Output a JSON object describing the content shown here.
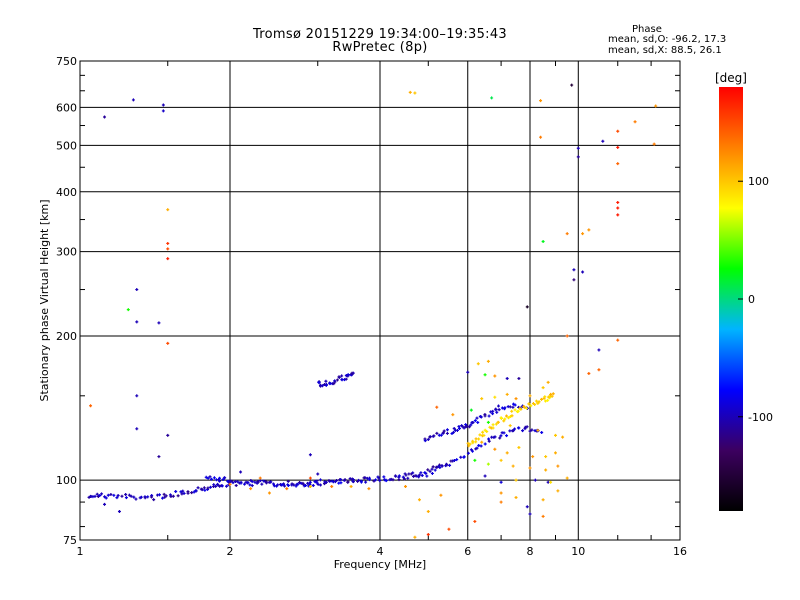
{
  "header": {
    "title_line1": "Tromsø 20151229 19:34:00–19:35:43",
    "title_line2": "RwPretec (8p)",
    "phase_heading": "Phase",
    "phase_o": "mean, sd,O: -96.2, 17.3",
    "phase_x": "mean, sd,X: 88.5, 26.1"
  },
  "chart_data": {
    "type": "scatter",
    "xlabel": "Frequency [MHz]",
    "ylabel": "Stationary phase Virtual Height [km]",
    "x_scale": "log2",
    "y_scale": "log",
    "xlim": [
      1,
      16
    ],
    "ylim": [
      75,
      750
    ],
    "x_ticks": [
      1,
      2,
      4,
      6,
      8,
      10,
      16
    ],
    "y_ticks": [
      75,
      100,
      200,
      300,
      400,
      500,
      600,
      750
    ],
    "grid": true,
    "colorbar": {
      "label": "[deg]",
      "range": [
        -180,
        180
      ],
      "ticks": [
        100,
        0,
        -100
      ],
      "colors": [
        "#000000",
        "#3c0060",
        "#0000ff",
        "#00b4ff",
        "#00ff00",
        "#ffff00",
        "#ff8000",
        "#ff0000"
      ]
    },
    "traces": [
      {
        "name": "",
        "note": "low-band O trace",
        "points": [
          [
            1.05,
            93
          ],
          [
            1.1,
            92.8
          ],
          [
            1.2,
            92.4
          ],
          [
            1.3,
            92.2
          ],
          [
            1.4,
            92
          ],
          [
            1.5,
            93
          ],
          [
            1.6,
            94
          ],
          [
            1.7,
            95.5
          ],
          [
            1.8,
            96.5
          ],
          [
            1.9,
            97.5
          ],
          [
            2.0,
            98.5
          ],
          [
            2.2,
            98.5
          ],
          [
            2.4,
            98
          ],
          [
            2.7,
            98
          ],
          [
            3.0,
            98.5
          ],
          [
            3.3,
            99
          ],
          [
            3.6,
            100
          ],
          [
            4.0,
            100.5
          ],
          [
            4.4,
            101.5
          ],
          [
            4.8,
            103
          ],
          [
            5.2,
            106
          ],
          [
            5.6,
            110
          ]
        ],
        "phase": -100
      },
      {
        "name": "",
        "note": "E-region band",
        "points": [
          [
            1.8,
            102
          ],
          [
            1.9,
            100.5
          ],
          [
            2.0,
            99.5
          ],
          [
            2.2,
            99
          ],
          [
            2.4,
            98.5
          ],
          [
            2.6,
            98.3
          ],
          [
            2.8,
            98.5
          ],
          [
            3.0,
            99
          ],
          [
            3.3,
            99.5
          ],
          [
            3.6,
            100
          ],
          [
            4.0,
            100.5
          ],
          [
            4.5,
            101.5
          ],
          [
            5.0,
            103
          ],
          [
            5.5,
            108
          ],
          [
            6.0,
            114
          ],
          [
            6.5,
            120
          ],
          [
            7.0,
            124
          ],
          [
            7.5,
            127
          ],
          [
            8.0,
            128
          ],
          [
            8.5,
            126
          ]
        ],
        "phase": -95
      },
      {
        "name": "",
        "note": "upper trace",
        "points": [
          [
            4.9,
            122
          ],
          [
            5.2,
            124
          ],
          [
            5.5,
            126
          ],
          [
            5.8,
            128
          ],
          [
            6.0,
            130
          ],
          [
            6.3,
            134
          ],
          [
            6.7,
            138
          ],
          [
            7.0,
            142
          ],
          [
            7.5,
            143
          ],
          [
            8.0,
            141
          ]
        ],
        "phase": -95
      },
      {
        "name": "",
        "note": "cusp segment",
        "points": [
          [
            3.0,
            159
          ],
          [
            3.1,
            159
          ],
          [
            3.2,
            160
          ],
          [
            3.35,
            163
          ],
          [
            3.45,
            165
          ],
          [
            3.55,
            167
          ]
        ],
        "phase": -100
      },
      {
        "name": "",
        "note": "X-mode trace",
        "points": [
          [
            6.0,
            118
          ],
          [
            6.3,
            122
          ],
          [
            6.6,
            128
          ],
          [
            7.0,
            134
          ],
          [
            7.4,
            138
          ],
          [
            7.8,
            142
          ],
          [
            8.2,
            145
          ],
          [
            8.6,
            148
          ],
          [
            9.0,
            150
          ]
        ],
        "phase": 95
      }
    ],
    "scatter": [
      [
        1.05,
        143,
        140
      ],
      [
        1.12,
        573,
        -110
      ],
      [
        1.28,
        622,
        -100
      ],
      [
        1.47,
        607,
        -100
      ],
      [
        1.47,
        590,
        -95
      ],
      [
        1.5,
        367,
        110
      ],
      [
        1.5,
        312,
        160
      ],
      [
        1.5,
        304,
        150
      ],
      [
        1.5,
        290,
        170
      ],
      [
        1.5,
        193,
        150
      ],
      [
        1.3,
        250,
        -100
      ],
      [
        1.3,
        214,
        -100
      ],
      [
        1.44,
        213,
        -100
      ],
      [
        1.3,
        150,
        -100
      ],
      [
        1.3,
        128,
        -100
      ],
      [
        1.44,
        112,
        -110
      ],
      [
        1.5,
        124,
        -110
      ],
      [
        1.25,
        227,
        30
      ],
      [
        1.05,
        92.5,
        -100
      ],
      [
        1.12,
        89,
        -100
      ],
      [
        1.2,
        86,
        -100
      ],
      [
        4.6,
        645,
        110
      ],
      [
        4.7,
        643,
        100
      ],
      [
        6.7,
        628,
        10
      ],
      [
        8.4,
        620,
        120
      ],
      [
        9.7,
        668,
        -150
      ],
      [
        8.4,
        520,
        130
      ],
      [
        10.0,
        493,
        -100
      ],
      [
        10.0,
        473,
        -110
      ],
      [
        11.2,
        510,
        -100
      ],
      [
        12.0,
        535,
        150
      ],
      [
        12.0,
        495,
        170
      ],
      [
        12.0,
        458,
        140
      ],
      [
        13.0,
        560,
        130
      ],
      [
        14.3,
        604,
        120
      ],
      [
        14.2,
        503,
        130
      ],
      [
        12.0,
        380,
        170
      ],
      [
        12.0,
        370,
        170
      ],
      [
        12.0,
        358,
        170
      ],
      [
        9.5,
        327,
        130
      ],
      [
        10.2,
        327,
        120
      ],
      [
        10.5,
        333,
        120
      ],
      [
        8.5,
        315,
        20
      ],
      [
        9.8,
        275,
        -100
      ],
      [
        10.2,
        272,
        -100
      ],
      [
        9.8,
        262,
        -120
      ],
      [
        7.9,
        230,
        -160
      ],
      [
        9.5,
        200,
        140
      ],
      [
        12.0,
        196,
        140
      ],
      [
        11.0,
        187,
        -100
      ],
      [
        10.5,
        167,
        140
      ],
      [
        11.0,
        170,
        140
      ],
      [
        6.3,
        175,
        100
      ],
      [
        6.6,
        177,
        110
      ],
      [
        6.8,
        165,
        120
      ],
      [
        6.5,
        166,
        30
      ],
      [
        7.2,
        163,
        -100
      ],
      [
        7.6,
        163,
        -110
      ],
      [
        8.5,
        156,
        100
      ],
      [
        8.7,
        160,
        110
      ],
      [
        6.0,
        168,
        -100
      ],
      [
        5.2,
        142,
        140
      ],
      [
        5.6,
        137,
        120
      ],
      [
        6.4,
        148,
        100
      ],
      [
        6.8,
        149,
        90
      ],
      [
        7.2,
        151,
        110
      ],
      [
        7.5,
        148,
        120
      ],
      [
        8.0,
        150,
        110
      ],
      [
        8.8,
        151,
        110
      ],
      [
        6.1,
        140,
        20
      ],
      [
        6.6,
        132,
        30
      ],
      [
        7.0,
        135,
        80
      ],
      [
        7.3,
        130,
        100
      ],
      [
        8.3,
        127,
        110
      ],
      [
        9.0,
        124,
        100
      ],
      [
        9.3,
        123,
        110
      ],
      [
        6.4,
        120,
        110
      ],
      [
        6.8,
        116,
        120
      ],
      [
        7.2,
        114,
        110
      ],
      [
        7.6,
        117,
        100
      ],
      [
        8.1,
        112,
        120
      ],
      [
        8.6,
        112,
        100
      ],
      [
        9.0,
        114,
        110
      ],
      [
        6.2,
        110,
        30
      ],
      [
        6.6,
        108,
        60
      ],
      [
        7.0,
        110,
        100
      ],
      [
        7.4,
        107,
        110
      ],
      [
        8.0,
        106,
        120
      ],
      [
        8.6,
        105,
        110
      ],
      [
        9.1,
        107,
        120
      ],
      [
        6.5,
        102,
        -100
      ],
      [
        7.0,
        99,
        -90
      ],
      [
        7.5,
        100,
        100
      ],
      [
        8.2,
        100,
        -100
      ],
      [
        8.7,
        99,
        -100
      ],
      [
        7.0,
        94,
        120
      ],
      [
        7.5,
        92,
        110
      ],
      [
        7.9,
        88,
        -100
      ],
      [
        8.0,
        85,
        -100
      ],
      [
        8.5,
        91,
        110
      ],
      [
        8.5,
        84,
        130
      ],
      [
        6.2,
        82,
        150
      ],
      [
        5.5,
        79,
        150
      ],
      [
        5.0,
        77,
        160
      ],
      [
        4.7,
        76,
        110
      ],
      [
        4.8,
        91,
        110
      ],
      [
        5.0,
        86,
        110
      ],
      [
        5.3,
        93,
        120
      ],
      [
        4.5,
        97,
        120
      ],
      [
        3.8,
        96,
        120
      ],
      [
        3.5,
        97,
        110
      ],
      [
        3.2,
        97,
        130
      ],
      [
        2.9,
        97,
        100
      ],
      [
        3.0,
        103,
        -100
      ],
      [
        2.6,
        96,
        130
      ],
      [
        2.4,
        94,
        120
      ],
      [
        2.2,
        96,
        120
      ],
      [
        2.0,
        98,
        130
      ],
      [
        2.1,
        104,
        -100
      ],
      [
        2.3,
        101,
        130
      ],
      [
        2.9,
        113,
        -100
      ],
      [
        2.9,
        101,
        150
      ],
      [
        7.0,
        90,
        130
      ],
      [
        9.5,
        101,
        110
      ],
      [
        9.1,
        95,
        110
      ],
      [
        8.8,
        99,
        90
      ]
    ]
  }
}
